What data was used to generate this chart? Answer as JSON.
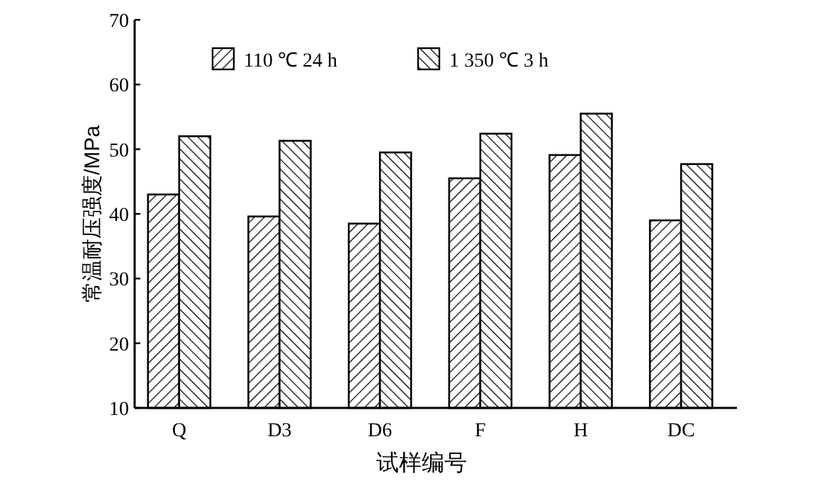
{
  "chart_data": {
    "type": "bar",
    "ylabel": "常温耐压强度/MPa",
    "xlabel": "试样编号",
    "categories": [
      "Q",
      "D3",
      "D6",
      "F",
      "H",
      "DC"
    ],
    "series": [
      {
        "name": "110 ℃ 24 h",
        "color": "#000000",
        "values": [
          43,
          39.6,
          38.5,
          45.5,
          49.1,
          39
        ]
      },
      {
        "name": "1 350 ℃ 3 h",
        "color": "#000000",
        "values": [
          52,
          51.3,
          49.5,
          52.4,
          55.5,
          47.7
        ]
      }
    ],
    "ylim": [
      10,
      70
    ],
    "yticks": [
      10,
      20,
      30,
      40,
      50,
      60,
      70
    ],
    "grid": false,
    "legend": "top left"
  }
}
